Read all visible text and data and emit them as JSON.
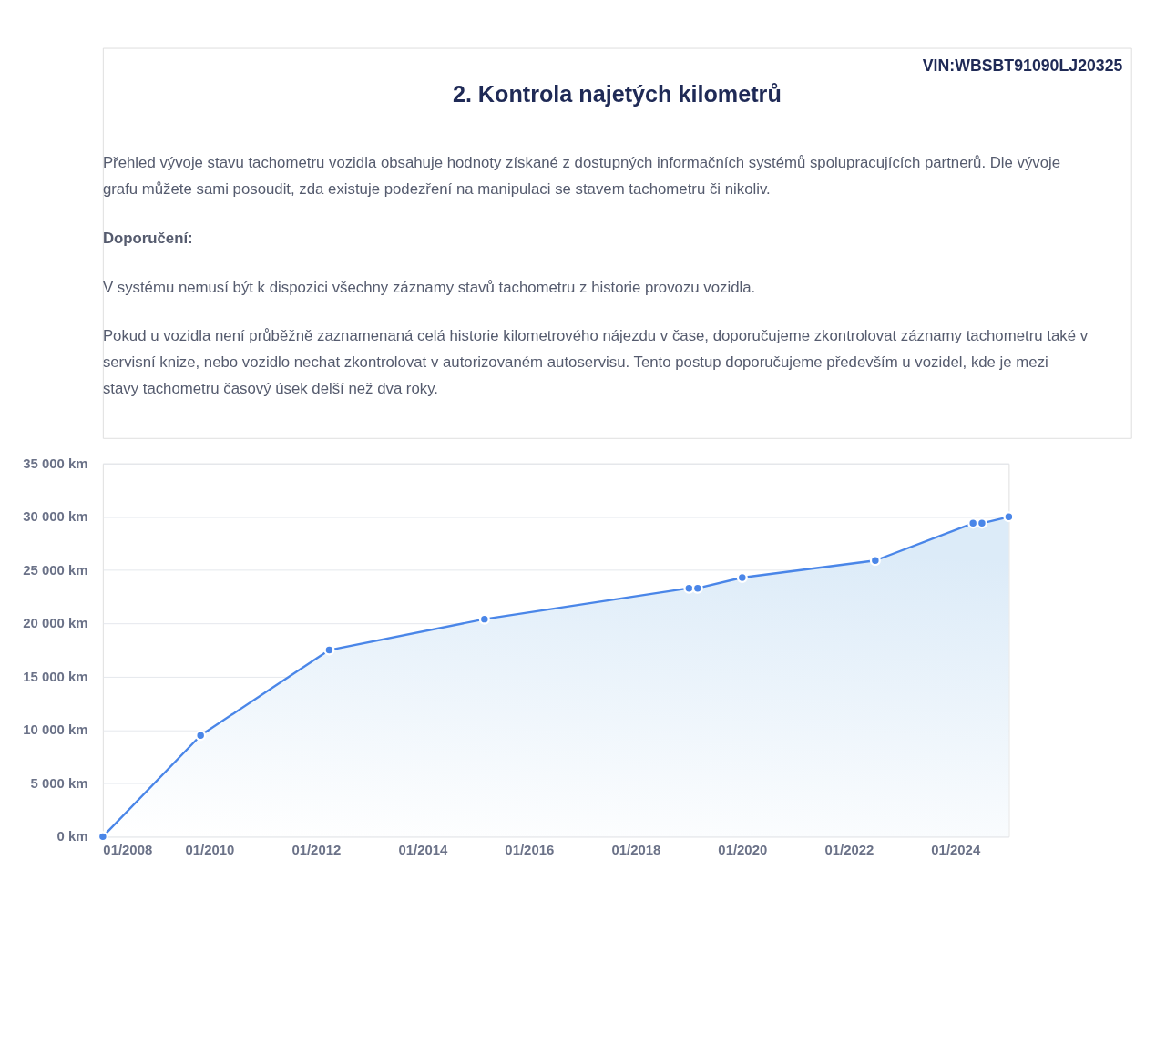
{
  "chart_data": {
    "type": "area",
    "title": "2. Kontrola najetých kilometrů",
    "annotations": [
      "VIN:WBSBT91090LJ20325",
      "Přehled vývoje stavu tachometru vozidla obsahuje hodnoty získané z dostupných informačních systémů spolupracujících partnerů. Dle vývoje grafu můžete sami posoudit, zda existuje podezření na manipulaci se stavem tachometru či nikoliv.",
      "Doporučení:",
      "V systému nemusí být k dispozici všechny záznamy stavů tachometru z historie provozu vozidla.",
      "Pokud u vozidla není průběžně zaznamenaná celá historie kilometrového nájezdu v čase, doporučujeme zkontrolovat záznamy tachometru také v servisní knize, nebo vozidlo nechat zkontrolovat v autorizovaném autoservisu. Tento postup doporučujeme především u vozidel, kde je mezi stavy tachometru časový úsek delší než dva roky."
    ],
    "x": [
      "2008-01",
      "2009-11",
      "2012-04",
      "2015-03",
      "2019-01",
      "2019-03",
      "2020-01",
      "2022-07",
      "2024-05",
      "2024-07",
      "2025-01"
    ],
    "series": [
      {
        "color": "#4a86e8",
        "values": [
          0,
          9500,
          17500,
          20400,
          23300,
          23300,
          24300,
          25900,
          29400,
          29400,
          30000
        ]
      }
    ],
    "xlim": [
      "2008-01",
      "2025-01"
    ],
    "xticks": [
      {
        "value": "2008-01",
        "label": "01/2008"
      },
      {
        "value": "2010-01",
        "label": "01/2010"
      },
      {
        "value": "2012-01",
        "label": "01/2012"
      },
      {
        "value": "2014-01",
        "label": "01/2014"
      },
      {
        "value": "2016-01",
        "label": "01/2016"
      },
      {
        "value": "2018-01",
        "label": "01/2018"
      },
      {
        "value": "2020-01",
        "label": "01/2020"
      },
      {
        "value": "2022-01",
        "label": "01/2022"
      },
      {
        "value": "2024-01",
        "label": "01/2024"
      }
    ],
    "ylim": [
      0,
      35000
    ],
    "yticks": [
      {
        "value": 0,
        "label": "0 km"
      },
      {
        "value": 5000,
        "label": "5 000 km"
      },
      {
        "value": 10000,
        "label": "10 000 km"
      },
      {
        "value": 15000,
        "label": "15 000 km"
      },
      {
        "value": 20000,
        "label": "20 000 km"
      },
      {
        "value": 25000,
        "label": "25 000 km"
      },
      {
        "value": 30000,
        "label": "30 000 km"
      },
      {
        "value": 35000,
        "label": "35 000 km"
      }
    ],
    "grid": "y",
    "marker": "circle",
    "line_style": "solid"
  }
}
